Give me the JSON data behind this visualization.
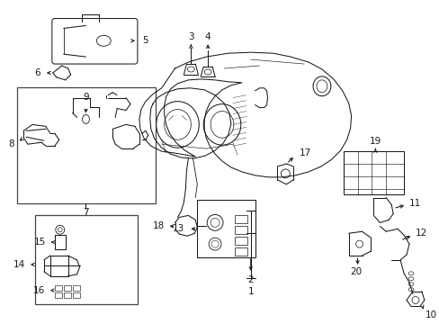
{
  "background_color": "#ffffff",
  "line_color": "#1a1a1a",
  "figsize": [
    4.89,
    3.6
  ],
  "dpi": 100,
  "label_fontsize": 7.5,
  "lw": 0.75
}
